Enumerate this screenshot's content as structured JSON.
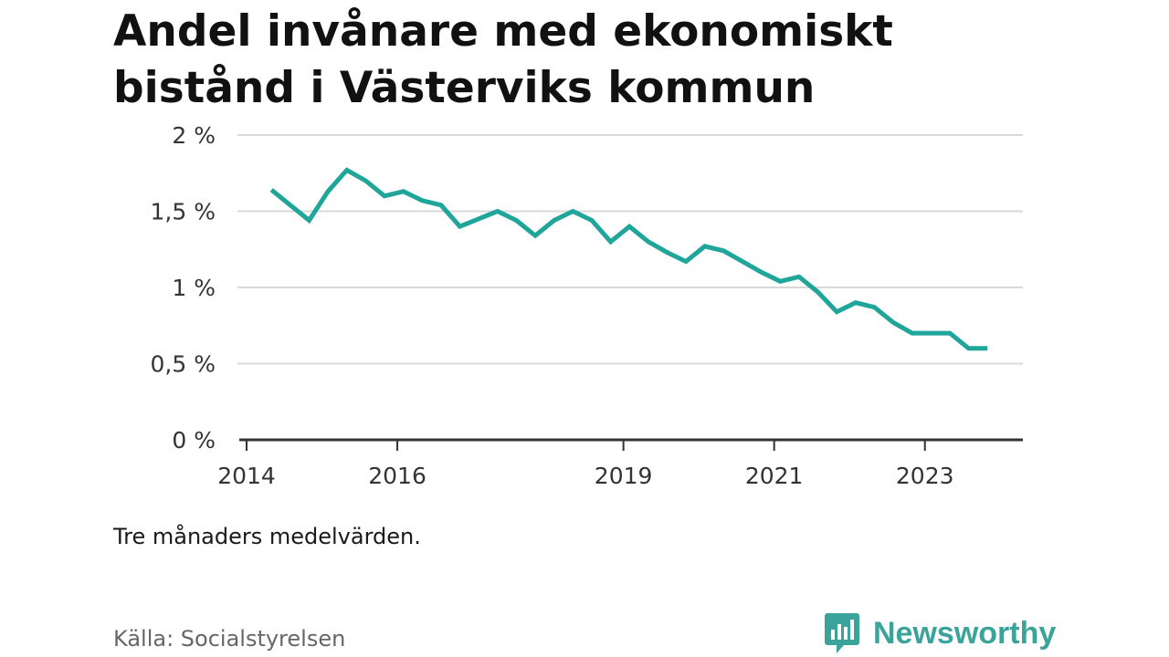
{
  "title": "Andel invånare med ekonomiskt bistånd i Västerviks kommun",
  "note": "Tre månaders medelvärden.",
  "source": "Källa: Socialstyrelsen",
  "brand": {
    "name": "Newsworthy",
    "icon": "bar-chart-badge-icon",
    "color": "#3aa39a"
  },
  "chart_data": {
    "type": "line",
    "title": "Andel invånare med ekonomiskt bistånd i Västerviks kommun",
    "xlabel": "",
    "ylabel": "",
    "ylim": [
      0,
      2
    ],
    "grid": true,
    "line_color": "#1fa59a",
    "y_ticks": [
      {
        "value": 0,
        "label": "0 %"
      },
      {
        "value": 0.5,
        "label": "0,5 %"
      },
      {
        "value": 1,
        "label": "1 %"
      },
      {
        "value": 1.5,
        "label": "1,5 %"
      },
      {
        "value": 2,
        "label": "2 %"
      }
    ],
    "x_ticks": [
      {
        "value": 2014,
        "label": "2014"
      },
      {
        "value": 2016,
        "label": "2016"
      },
      {
        "value": 2019,
        "label": "2019"
      },
      {
        "value": 2021,
        "label": "2021"
      },
      {
        "value": 2023,
        "label": "2023"
      }
    ],
    "xlim": [
      2014.0,
      2024.3
    ],
    "series": [
      {
        "x": [
          2014.33,
          2014.58,
          2014.83,
          2015.08,
          2015.33,
          2015.58,
          2015.83,
          2016.08,
          2016.33,
          2016.58,
          2016.83,
          2017.08,
          2017.33,
          2017.58,
          2017.83,
          2018.08,
          2018.33,
          2018.58,
          2018.83,
          2019.08,
          2019.33,
          2019.58,
          2019.83,
          2020.08,
          2020.33,
          2020.58,
          2020.83,
          2021.08,
          2021.33,
          2021.58,
          2021.83,
          2022.08,
          2022.33,
          2022.58,
          2022.83,
          2023.08,
          2023.33,
          2023.58,
          2023.83
        ],
        "values": [
          1.64,
          1.54,
          1.44,
          1.63,
          1.77,
          1.7,
          1.6,
          1.63,
          1.57,
          1.54,
          1.4,
          1.45,
          1.5,
          1.44,
          1.34,
          1.44,
          1.5,
          1.44,
          1.3,
          1.4,
          1.3,
          1.23,
          1.17,
          1.27,
          1.24,
          1.17,
          1.1,
          1.04,
          1.07,
          0.97,
          0.84,
          0.9,
          0.87,
          0.77,
          0.7,
          0.7,
          0.7,
          0.6,
          0.6
        ]
      }
    ]
  }
}
